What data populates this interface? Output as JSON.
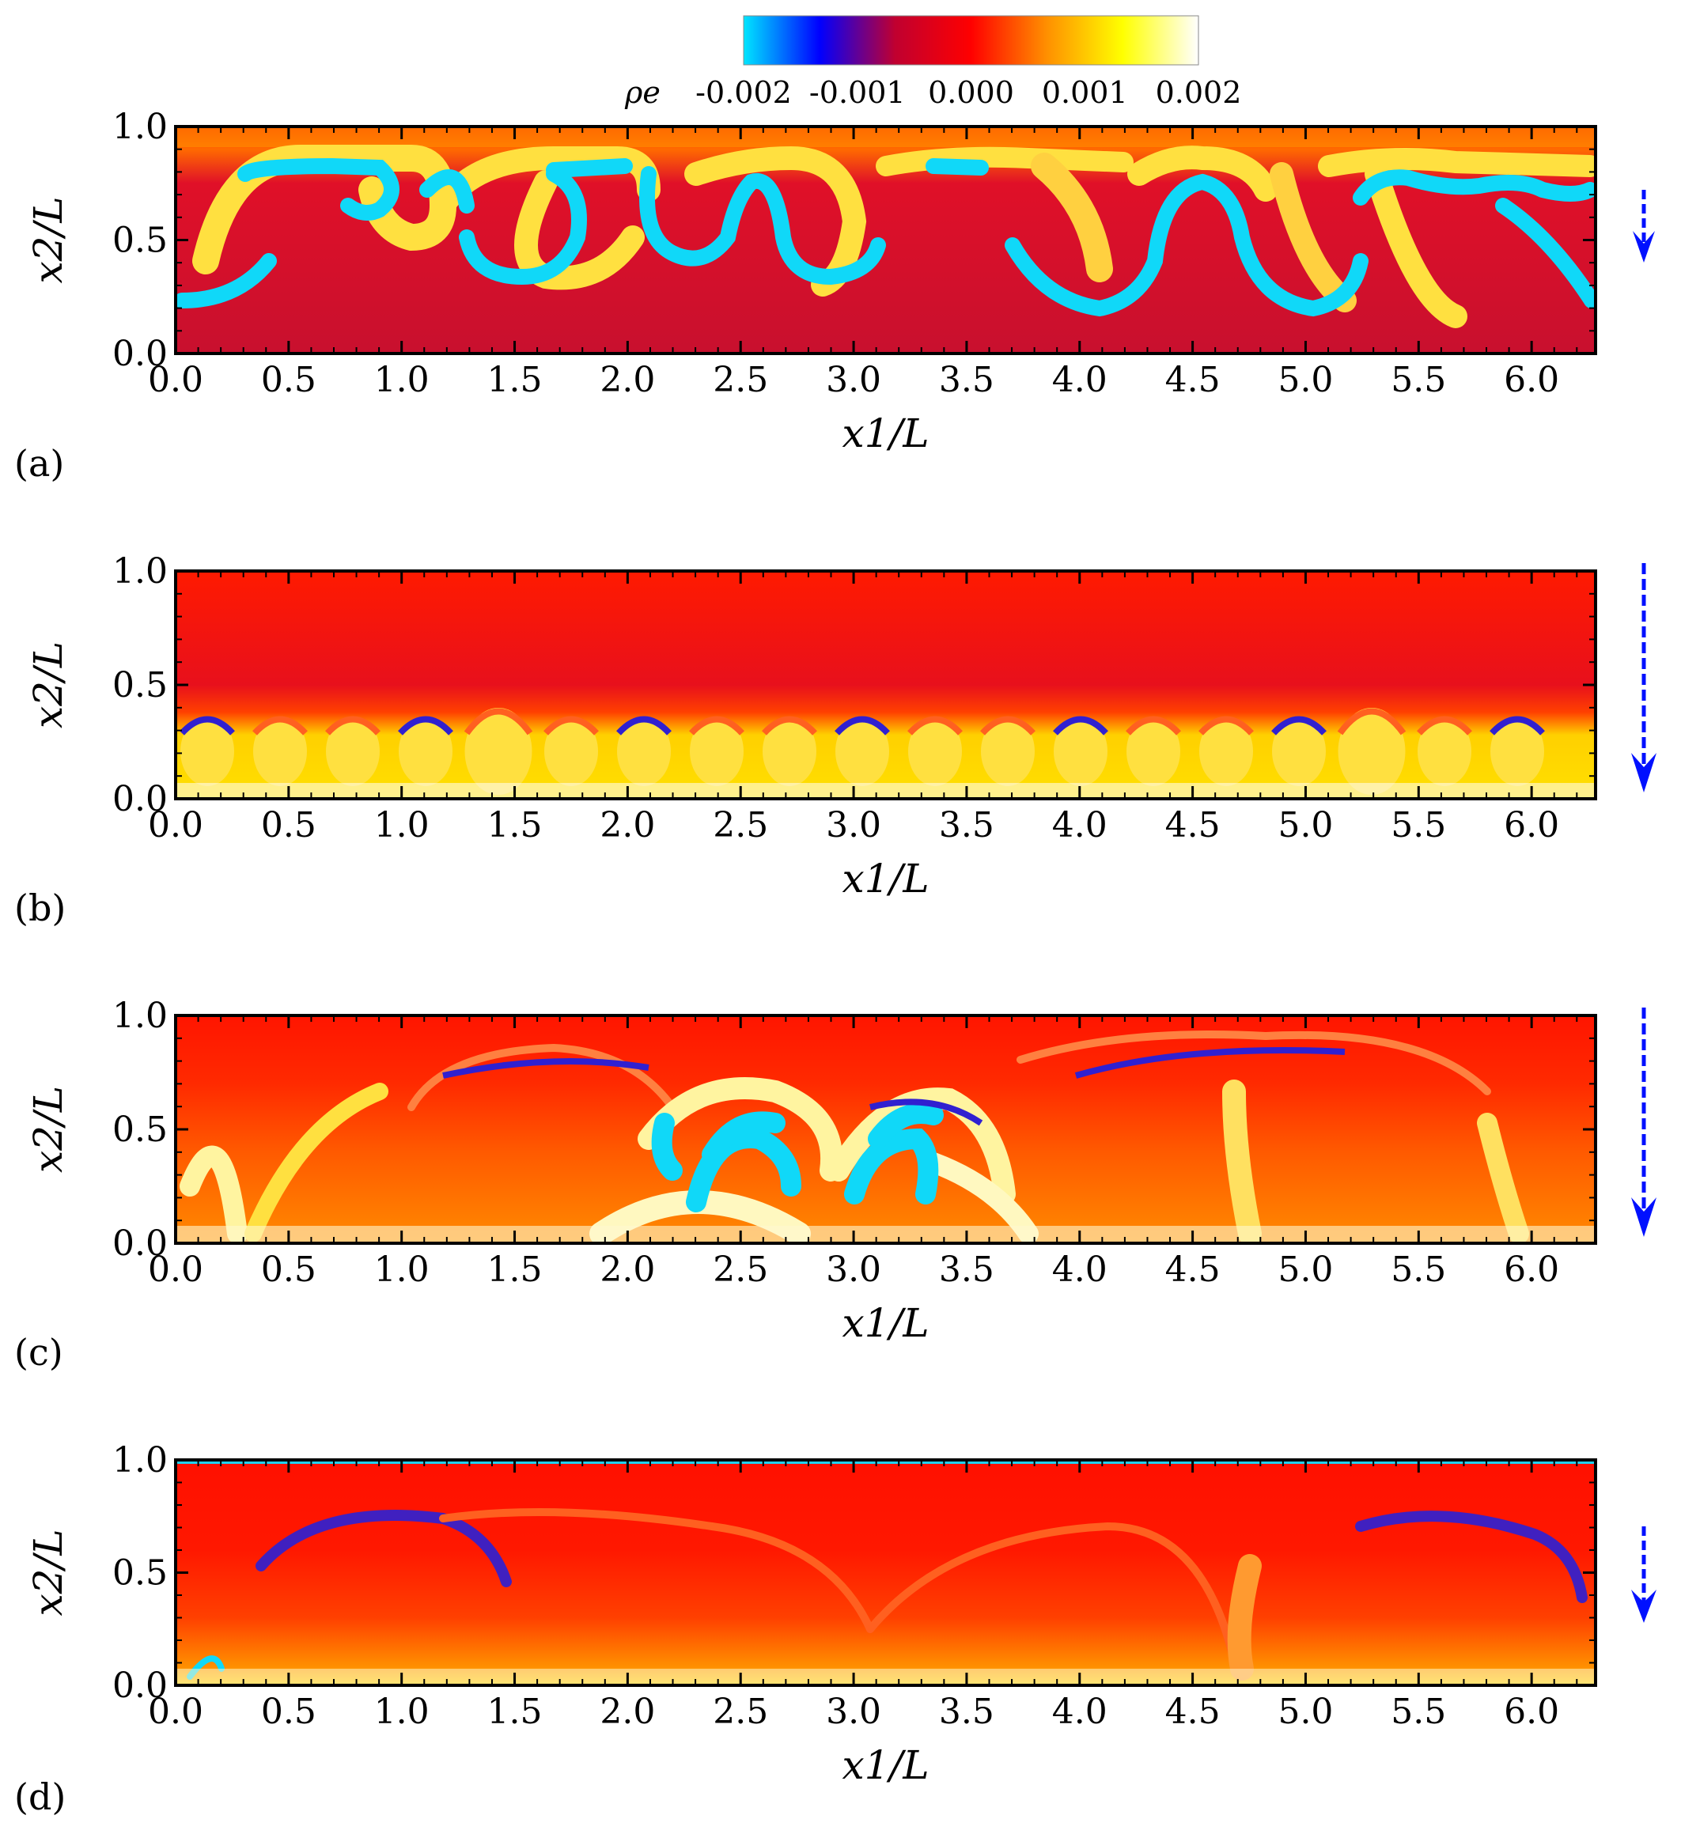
{
  "colorbar": {
    "label": "ρe",
    "ticks": [
      "-0.002",
      "-0.001",
      "0.000",
      "0.001",
      "0.002"
    ],
    "range": [
      -0.002,
      0.002
    ],
    "colors": [
      "#00e5ff",
      "#0000ff",
      "#c00030",
      "#ff0000",
      "#ff9000",
      "#ffff00",
      "#ffffff"
    ]
  },
  "chart_data": [
    {
      "type": "heatmap",
      "panel": "(a)",
      "xlabel": "x1/L",
      "ylabel": "x2/L",
      "xlim": [
        0,
        6.283
      ],
      "ylim": [
        0,
        1
      ],
      "xticks": [
        "0.0",
        "0.5",
        "1.0",
        "1.5",
        "2.0",
        "2.5",
        "3.0",
        "3.5",
        "4.0",
        "4.5",
        "5.0",
        "5.5",
        "6.0"
      ],
      "yticks": [
        "0.0",
        "0.5",
        "1.0"
      ],
      "arrow": "down"
    },
    {
      "type": "heatmap",
      "panel": "(b)",
      "xlabel": "x1/L",
      "ylabel": "x2/L",
      "xlim": [
        0,
        6.283
      ],
      "ylim": [
        0,
        1
      ],
      "xticks": [
        "0.0",
        "0.5",
        "1.0",
        "1.5",
        "2.0",
        "2.5",
        "3.0",
        "3.5",
        "4.0",
        "4.5",
        "5.0",
        "5.5",
        "6.0"
      ],
      "yticks": [
        "0.0",
        "0.5",
        "1.0"
      ],
      "arrow": "down"
    },
    {
      "type": "heatmap",
      "panel": "(c)",
      "xlabel": "x1/L",
      "ylabel": "x2/L",
      "xlim": [
        0,
        6.283
      ],
      "ylim": [
        0,
        1
      ],
      "xticks": [
        "0.0",
        "0.5",
        "1.0",
        "1.5",
        "2.0",
        "2.5",
        "3.0",
        "3.5",
        "4.0",
        "4.5",
        "5.0",
        "5.5",
        "6.0"
      ],
      "yticks": [
        "0.0",
        "0.5",
        "1.0"
      ],
      "arrow": "down"
    },
    {
      "type": "heatmap",
      "panel": "(d)",
      "xlabel": "x1/L",
      "ylabel": "x2/L",
      "xlim": [
        0,
        6.283
      ],
      "ylim": [
        0,
        1
      ],
      "xticks": [
        "0.0",
        "0.5",
        "1.0",
        "1.5",
        "2.0",
        "2.5",
        "3.0",
        "3.5",
        "4.0",
        "4.5",
        "5.0",
        "5.5",
        "6.0"
      ],
      "yticks": [
        "0.0",
        "0.5",
        "1.0"
      ],
      "arrow": "down"
    }
  ]
}
